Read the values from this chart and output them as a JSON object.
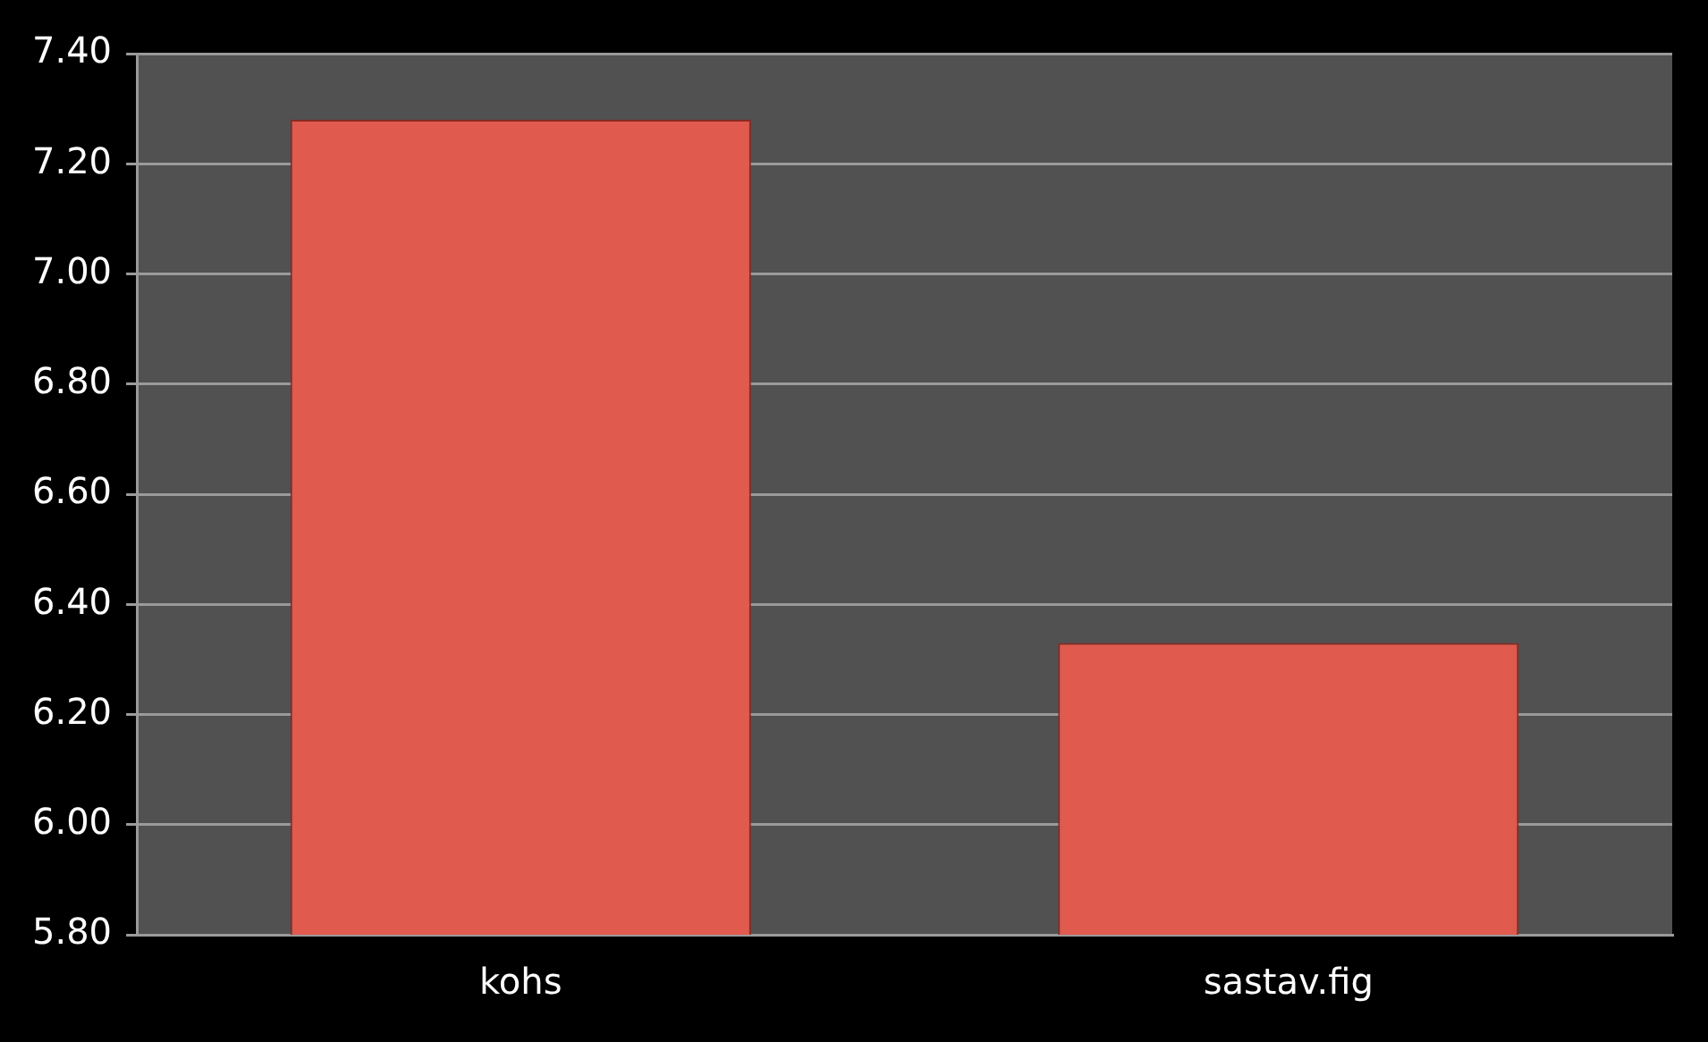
{
  "chart_data": {
    "type": "bar",
    "categories": [
      "kohs",
      "sastav.fig"
    ],
    "values": [
      7.28,
      6.33
    ],
    "color": "#e05a4e",
    "ylim": [
      5.8,
      7.4
    ],
    "yticks": [
      {
        "value": 5.8,
        "label": "5.80"
      },
      {
        "value": 6.0,
        "label": "6.00"
      },
      {
        "value": 6.2,
        "label": "6.20"
      },
      {
        "value": 6.4,
        "label": "6.40"
      },
      {
        "value": 6.6,
        "label": "6.60"
      },
      {
        "value": 6.8,
        "label": "6.80"
      },
      {
        "value": 7.0,
        "label": "7.00"
      },
      {
        "value": 7.2,
        "label": "7.20"
      },
      {
        "value": 7.4,
        "label": "7.40"
      }
    ],
    "grid": "y"
  }
}
